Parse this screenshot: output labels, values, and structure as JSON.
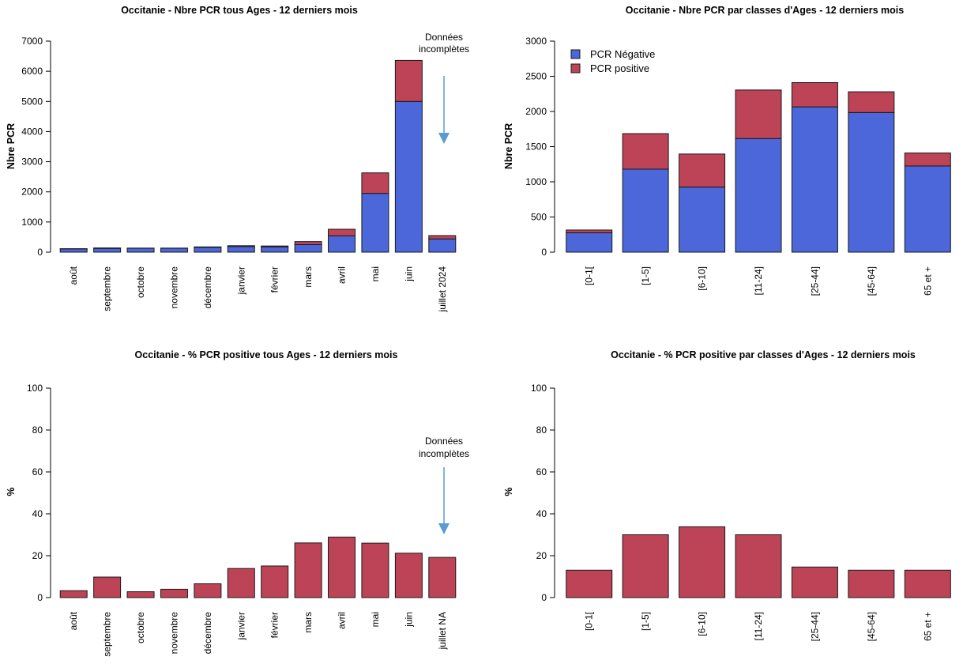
{
  "colors": {
    "negative": "#4B67D9",
    "positive": "#BD4356",
    "arrow": "#5B9BD5",
    "stroke": "#1a1a1a"
  },
  "chart_data": [
    {
      "type": "bar",
      "stacked": true,
      "title": "Occitanie - Nbre PCR tous Ages - 12 derniers mois",
      "ylabel": "Nbre PCR",
      "ylim": [
        0,
        7000
      ],
      "yticks": [
        0,
        1000,
        2000,
        3000,
        4000,
        5000,
        6000,
        7000
      ],
      "categories": [
        "août",
        "septembre",
        "octobre",
        "novembre",
        "décembre",
        "janvier",
        "février",
        "mars",
        "avril",
        "mai",
        "juin",
        "juillet 2024"
      ],
      "series": [
        {
          "name": "PCR Négative",
          "values": [
            110,
            125,
            130,
            130,
            160,
            185,
            175,
            250,
            540,
            1950,
            5000,
            440
          ]
        },
        {
          "name": "PCR positive",
          "values": [
            5,
            15,
            5,
            5,
            15,
            30,
            30,
            100,
            220,
            680,
            1360,
            110
          ]
        }
      ],
      "annotation": {
        "text": [
          "Données",
          "incomplètes"
        ]
      }
    },
    {
      "type": "bar",
      "stacked": true,
      "title": "Occitanie - Nbre PCR par classes d'Ages - 12 derniers mois",
      "ylabel": "Nbre PCR",
      "ylim": [
        0,
        3000
      ],
      "yticks": [
        0,
        500,
        1000,
        1500,
        2000,
        2500,
        3000
      ],
      "categories": [
        "[0-1[",
        "[1-5]",
        "[6-10]",
        "[11-24]",
        "[25-44]",
        "[45-64]",
        "65 et +"
      ],
      "series": [
        {
          "name": "PCR Négative",
          "values": [
            275,
            1180,
            925,
            1615,
            2065,
            1985,
            1225
          ]
        },
        {
          "name": "PCR positive",
          "values": [
            40,
            505,
            470,
            690,
            345,
            295,
            185
          ]
        }
      ],
      "legend": {
        "position": "top-left",
        "entries": [
          "PCR Négative",
          "PCR positive"
        ]
      }
    },
    {
      "type": "bar",
      "title": "Occitanie - % PCR positive tous Ages - 12 derniers mois",
      "ylabel": "%",
      "ylim": [
        0,
        100
      ],
      "yticks": [
        0,
        20,
        40,
        60,
        80,
        100
      ],
      "categories": [
        "août",
        "septembre",
        "octobre",
        "novembre",
        "décembre",
        "janvier",
        "février",
        "mars",
        "avril",
        "mai",
        "juin",
        "juillet NA"
      ],
      "values": [
        3.3,
        9.8,
        2.8,
        4.0,
        6.6,
        13.9,
        15.1,
        26.1,
        28.9,
        26.0,
        21.2,
        19.2
      ],
      "annotation": {
        "text": [
          "Données",
          "incomplètes"
        ]
      }
    },
    {
      "type": "bar",
      "title": "Occitanie - % PCR positive par classes d'Ages - 12 derniers mois",
      "ylabel": "%",
      "ylim": [
        0,
        100
      ],
      "yticks": [
        0,
        20,
        40,
        60,
        80,
        100
      ],
      "categories": [
        "[0-1[",
        "[1-5]",
        "[6-10]",
        "[11-24]",
        "[25-44]",
        "[45-64]",
        "65 et +"
      ],
      "values": [
        13.1,
        30.0,
        33.8,
        30.0,
        14.6,
        13.1,
        13.1
      ]
    }
  ]
}
